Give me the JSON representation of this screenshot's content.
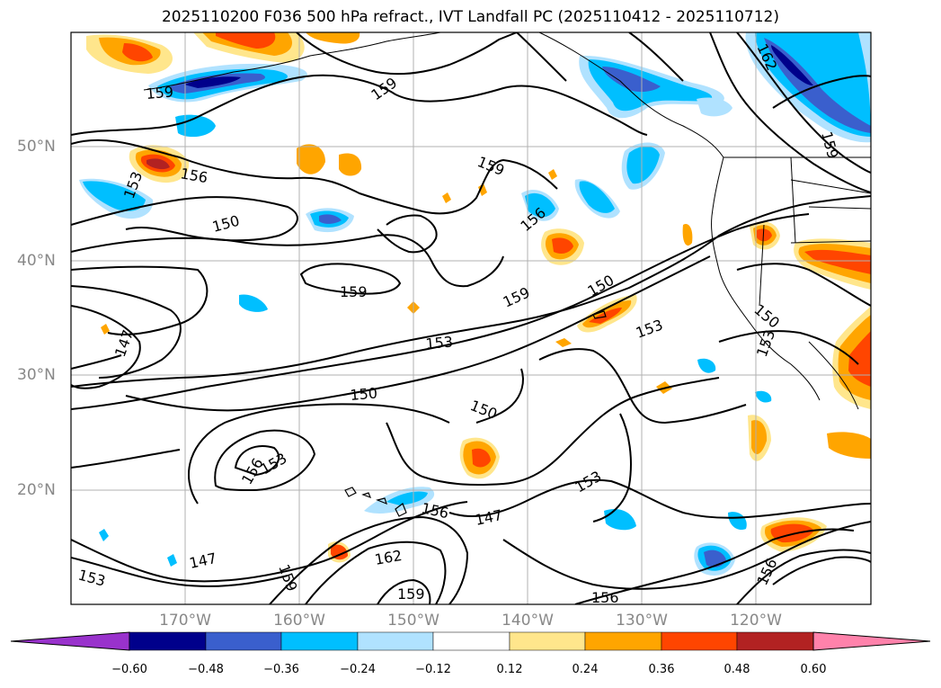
{
  "title": "2025110200 F036 500 hPa refract., IVT Landfall PC (2025110412 - 2025110712)",
  "lat_labels": [
    "50°N",
    "40°N",
    "30°N",
    "20°N"
  ],
  "lon_labels": [
    "170°W",
    "160°W",
    "150°W",
    "140°W",
    "130°W",
    "120°W"
  ],
  "colorbar": {
    "ticks": [
      "−0.60",
      "−0.48",
      "−0.36",
      "−0.24",
      "−0.12",
      "0.12",
      "0.24",
      "0.36",
      "0.48",
      "0.60"
    ],
    "colors": [
      "#9932cc",
      "#00008b",
      "#3a5fcd",
      "#00bfff",
      "#b0e2ff",
      "#ffffff",
      "#ffe68c",
      "#ffa500",
      "#ff4500",
      "#b22222",
      "#ff82ab"
    ]
  },
  "contour_labels": [
    "159",
    "159",
    "156",
    "153",
    "150",
    "159",
    "156",
    "159",
    "150",
    "159",
    "153",
    "147",
    "150",
    "150",
    "156",
    "153",
    "153",
    "156",
    "147",
    "147",
    "153",
    "162",
    "159",
    "159",
    "156",
    "150",
    "153",
    "153",
    "156",
    "162",
    "159"
  ],
  "colors": {
    "contour": "#000000",
    "grid": "#b0b0b0",
    "axis_text": "#888888"
  }
}
